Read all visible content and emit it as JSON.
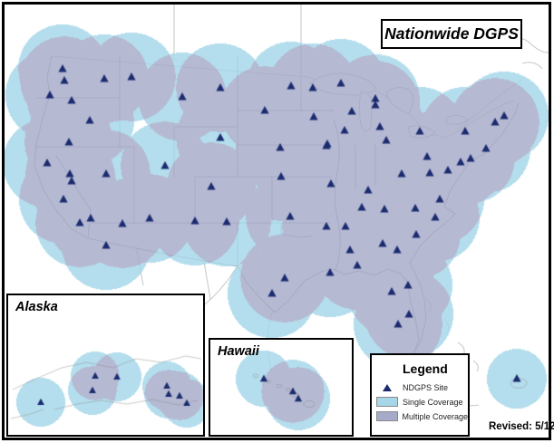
{
  "title": "Nationwide DGPS",
  "revised_label": "Revised: 5/12",
  "insets": {
    "alaska": {
      "label": "Alaska"
    },
    "hawaii": {
      "label": "Hawaii"
    }
  },
  "legend": {
    "title": "Legend",
    "items": [
      {
        "label": "NDGPS Site",
        "marker": "triangle"
      },
      {
        "label": "Single Coverage",
        "swatch": "single_coverage"
      },
      {
        "label": "Multiple Coverage",
        "swatch": "multiple_coverage"
      }
    ]
  },
  "colors": {
    "single_coverage": "#A5D7E9",
    "multiple_coverage": "#A6ABC9",
    "ndgps_site": "#1B2B6F",
    "frame_border": "#000000",
    "basemap_line": "#ADADAD"
  },
  "map_data": {
    "type": "coverage-map",
    "conus_radius": 49,
    "conus_sites": [
      [
        69,
        76
      ],
      [
        71,
        89
      ],
      [
        55,
        105
      ],
      [
        79,
        111
      ],
      [
        115,
        87
      ],
      [
        145,
        85
      ],
      [
        99,
        133
      ],
      [
        76,
        157
      ],
      [
        201,
        107
      ],
      [
        243,
        97
      ],
      [
        292,
        122
      ],
      [
        243,
        152
      ],
      [
        52,
        180
      ],
      [
        77,
        192
      ],
      [
        117,
        192
      ],
      [
        79,
        200
      ],
      [
        70,
        220
      ],
      [
        100,
        241
      ],
      [
        88,
        246
      ],
      [
        135,
        247
      ],
      [
        117,
        271
      ],
      [
        182,
        183
      ],
      [
        233,
        206
      ],
      [
        165,
        241
      ],
      [
        215,
        244
      ],
      [
        250,
        245
      ],
      [
        309,
        163
      ],
      [
        310,
        195
      ],
      [
        320,
        239
      ],
      [
        360,
        161
      ],
      [
        365,
        203
      ],
      [
        360,
        250
      ],
      [
        321,
        95
      ],
      [
        345,
        97
      ],
      [
        376,
        92
      ],
      [
        346,
        129
      ],
      [
        388,
        123
      ],
      [
        414,
        109
      ],
      [
        414,
        116
      ],
      [
        419,
        140
      ],
      [
        380,
        144
      ],
      [
        361,
        159
      ],
      [
        426,
        155
      ],
      [
        463,
        145
      ],
      [
        513,
        145
      ],
      [
        546,
        135
      ],
      [
        556,
        128
      ],
      [
        536,
        164
      ],
      [
        519,
        175
      ],
      [
        508,
        179
      ],
      [
        494,
        188
      ],
      [
        474,
        191
      ],
      [
        471,
        173
      ],
      [
        443,
        192
      ],
      [
        406,
        210
      ],
      [
        399,
        229
      ],
      [
        424,
        231
      ],
      [
        458,
        230
      ],
      [
        485,
        220
      ],
      [
        480,
        240
      ],
      [
        381,
        250
      ],
      [
        459,
        259
      ],
      [
        422,
        269
      ],
      [
        438,
        276
      ],
      [
        386,
        276
      ],
      [
        394,
        293
      ],
      [
        364,
        301
      ],
      [
        314,
        307
      ],
      [
        300,
        324
      ],
      [
        450,
        315
      ],
      [
        432,
        322
      ],
      [
        451,
        347
      ],
      [
        439,
        358
      ]
    ],
    "puerto_rico": {
      "site": [
        570,
        418
      ],
      "radius": 33
    },
    "alaska_radius": 27,
    "alaska_sites": [
      [
        45,
        444
      ],
      [
        105,
        415
      ],
      [
        129,
        416
      ],
      [
        102,
        431
      ],
      [
        184,
        426
      ],
      [
        186,
        435
      ],
      [
        198,
        437
      ],
      [
        206,
        445
      ]
    ],
    "hawaii_sites": [
      [
        291,
        418
      ],
      [
        323,
        432
      ],
      [
        329,
        440
      ]
    ],
    "hawaii_radii": [
      31,
      35,
      35
    ]
  }
}
